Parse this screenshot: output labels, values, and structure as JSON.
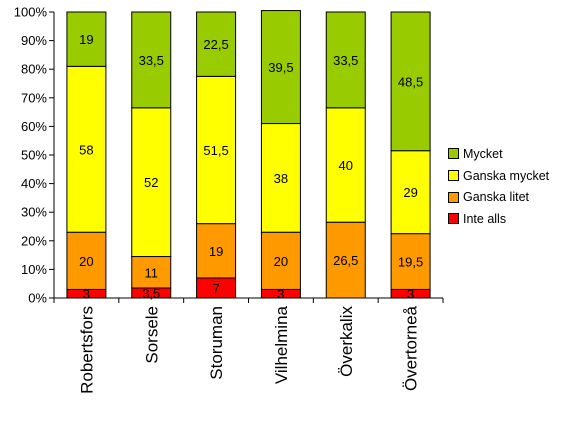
{
  "chart_data": {
    "type": "bar",
    "stacked": true,
    "title": "",
    "xlabel": "",
    "ylabel": "",
    "ylim": [
      0,
      100
    ],
    "y_ticks": [
      "0%",
      "10%",
      "20%",
      "30%",
      "40%",
      "50%",
      "60%",
      "70%",
      "80%",
      "90%",
      "100%"
    ],
    "grid": false,
    "legend_position": "right",
    "categories": [
      "Robertsfors",
      "Sorsele",
      "Storuman",
      "Vilhelmina",
      "Överkalix",
      "Övertorneå"
    ],
    "series": [
      {
        "name": "Inte alls",
        "color": "#ff0000",
        "values": [
          3,
          3.5,
          7,
          3,
          0,
          3
        ],
        "labels": [
          "3",
          "3,5",
          "7",
          "3",
          "",
          "3"
        ]
      },
      {
        "name": "Ganska litet",
        "color": "#ff9900",
        "values": [
          20,
          11,
          19,
          20,
          26.5,
          19.5
        ],
        "labels": [
          "20",
          "11",
          "19",
          "20",
          "26,5",
          "19,5"
        ]
      },
      {
        "name": "Ganska mycket",
        "color": "#ffff00",
        "values": [
          58,
          52,
          51.5,
          38,
          40,
          29
        ],
        "labels": [
          "58",
          "52",
          "51,5",
          "38",
          "40",
          "29"
        ]
      },
      {
        "name": "Mycket",
        "color": "#99cc00",
        "values": [
          19,
          33.5,
          22.5,
          39.5,
          33.5,
          48.5
        ],
        "labels": [
          "19",
          "33,5",
          "22,5",
          "39,5",
          "33,5",
          "48,5"
        ]
      }
    ],
    "legend_order": [
      "Mycket",
      "Ganska mycket",
      "Ganska litet",
      "Inte alls"
    ]
  }
}
